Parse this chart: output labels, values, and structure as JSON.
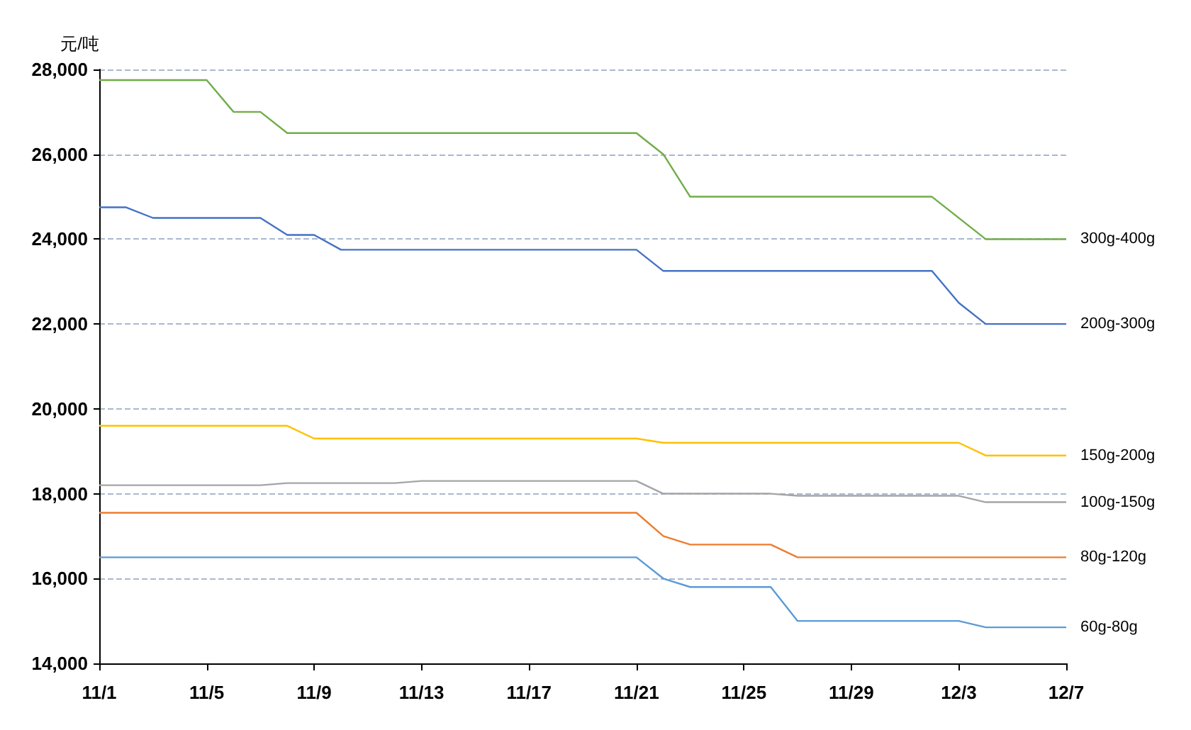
{
  "chart_data": {
    "type": "line",
    "ylabel": "元/吨",
    "legend": false,
    "grid": "y",
    "marker": "none",
    "xlim": [
      "--11-01",
      "--12-07"
    ],
    "xticks": [
      {
        "value": "--11-01",
        "label": "11/1"
      },
      {
        "value": "--11-05",
        "label": "11/5"
      },
      {
        "value": "--11-09",
        "label": "11/9"
      },
      {
        "value": "--11-13",
        "label": "11/13"
      },
      {
        "value": "--11-17",
        "label": "11/17"
      },
      {
        "value": "--11-21",
        "label": "11/21"
      },
      {
        "value": "--11-25",
        "label": "11/25"
      },
      {
        "value": "--11-29",
        "label": "11/29"
      },
      {
        "value": "--12-03",
        "label": "12/3"
      },
      {
        "value": "--12-07",
        "label": "12/7"
      }
    ],
    "ylim": [
      14000,
      28000
    ],
    "yticks": [
      {
        "value": 14000,
        "label": "14,000"
      },
      {
        "value": 16000,
        "label": "16,000"
      },
      {
        "value": 18000,
        "label": "18,000"
      },
      {
        "value": 20000,
        "label": "20,000"
      },
      {
        "value": 22000,
        "label": "22,000"
      },
      {
        "value": 24000,
        "label": "24,000"
      },
      {
        "value": 26000,
        "label": "26,000"
      },
      {
        "value": 28000,
        "label": "28,000"
      }
    ],
    "series": [
      {
        "name": "300g-400g",
        "color": "#70ad47",
        "x": [
          "--11-01",
          "--11-05",
          "--11-06",
          "--11-07",
          "--11-08",
          "--11-21",
          "--11-22",
          "--11-23",
          "--12-02",
          "--12-04",
          "--12-07"
        ],
        "values": [
          27750,
          27750,
          27000,
          27000,
          26500,
          26500,
          26000,
          25000,
          25000,
          24000,
          24000
        ]
      },
      {
        "name": "200g-300g",
        "color": "#4472c4",
        "x": [
          "--11-01",
          "--11-02",
          "--11-03",
          "--11-07",
          "--11-08",
          "--11-09",
          "--11-10",
          "--11-21",
          "--11-22",
          "--12-02",
          "--12-03",
          "--12-04",
          "--12-07"
        ],
        "values": [
          24750,
          24750,
          24500,
          24500,
          24100,
          24100,
          23750,
          23750,
          23250,
          23250,
          22500,
          22000,
          22000
        ]
      },
      {
        "name": "150g-200g",
        "color": "#ffc000",
        "x": [
          "--11-01",
          "--11-08",
          "--11-09",
          "--11-21",
          "--11-22",
          "--12-03",
          "--12-04",
          "--12-07"
        ],
        "values": [
          19600,
          19600,
          19300,
          19300,
          19200,
          19200,
          18900,
          18900
        ]
      },
      {
        "name": "100g-150g",
        "color": "#a5a5a5",
        "x": [
          "--11-01",
          "--11-07",
          "--11-08",
          "--11-12",
          "--11-13",
          "--11-21",
          "--11-22",
          "--11-26",
          "--11-27",
          "--12-03",
          "--12-04",
          "--12-07"
        ],
        "values": [
          18200,
          18200,
          18250,
          18250,
          18300,
          18300,
          18000,
          18000,
          17950,
          17950,
          17800,
          17800
        ]
      },
      {
        "name": "80g-120g",
        "color": "#ed7d31",
        "x": [
          "--11-01",
          "--11-21",
          "--11-22",
          "--11-23",
          "--11-26",
          "--11-27",
          "--12-07"
        ],
        "values": [
          17550,
          17550,
          17000,
          16800,
          16800,
          16500,
          16500
        ]
      },
      {
        "name": "60g-80g",
        "color": "#5b9bd5",
        "x": [
          "--11-01",
          "--11-21",
          "--11-22",
          "--11-23",
          "--11-26",
          "--11-27",
          "--12-03",
          "--12-04",
          "--12-07"
        ],
        "values": [
          16500,
          16500,
          16000,
          15800,
          15800,
          15000,
          15000,
          14850,
          14850
        ]
      }
    ]
  }
}
